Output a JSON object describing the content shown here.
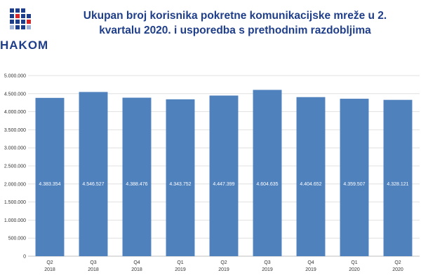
{
  "brand": {
    "logo_text": "HAKOM",
    "colors": {
      "blue": "#1f3e8a",
      "red": "#d7262a"
    }
  },
  "chart_data": {
    "type": "bar",
    "title": "Ukupan broj korisnika pokretne komunikacijske mreže u 2. kvartalu 2020. i usporedba s prethodnim razdobljima",
    "categories": [
      [
        "Q2",
        "2018"
      ],
      [
        "Q3",
        "2018"
      ],
      [
        "Q4",
        "2018"
      ],
      [
        "Q1",
        "2019"
      ],
      [
        "Q2",
        "2019"
      ],
      [
        "Q3",
        "2019"
      ],
      [
        "Q4",
        "2019"
      ],
      [
        "Q1",
        "2020"
      ],
      [
        "Q2",
        "2020"
      ]
    ],
    "values": [
      4383354,
      4546527,
      4388476,
      4343752,
      4447399,
      4604635,
      4404652,
      4359507,
      4328121
    ],
    "value_labels": [
      "4.383.354",
      "4.546.527",
      "4.388.476",
      "4.343.752",
      "4.447.399",
      "4.604.635",
      "4.404.652",
      "4.359.507",
      "4.328.121"
    ],
    "y_ticks": [
      "0",
      "500.000",
      "1.000.000",
      "1.500.000",
      "2.000.000",
      "2.500.000",
      "3.000.000",
      "3.500.000",
      "4.000.000",
      "4.500.000",
      "5.000.000"
    ],
    "ylim": [
      0,
      5000000
    ],
    "grid": true,
    "bar_color": "#4f81bd",
    "xlabel": "",
    "ylabel": ""
  }
}
